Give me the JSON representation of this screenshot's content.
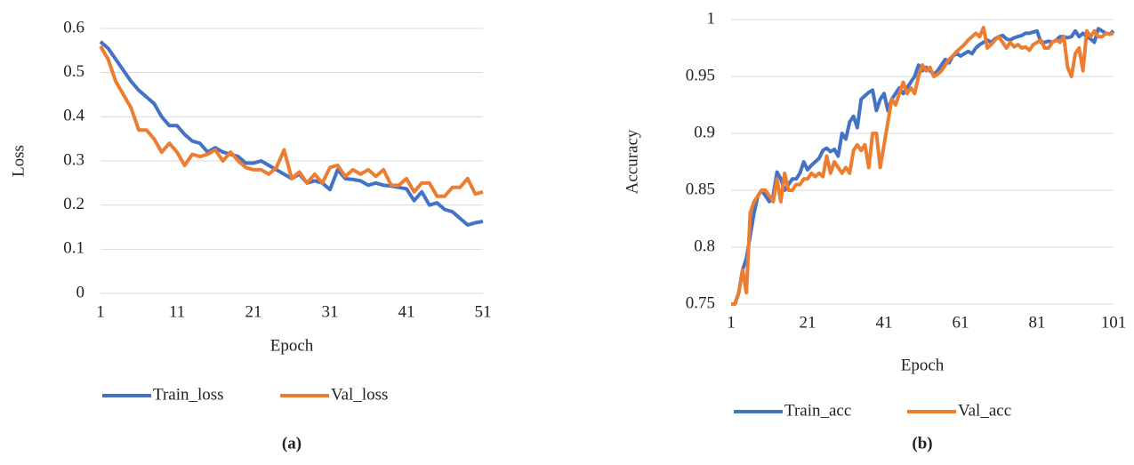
{
  "chart_data": [
    {
      "type": "line",
      "caption": "(a)",
      "xlabel": "Epoch",
      "ylabel": "Loss",
      "xlim": [
        1,
        51
      ],
      "xticks": [
        1,
        11,
        21,
        31,
        41,
        51
      ],
      "ylim": [
        0,
        0.6
      ],
      "yticks": [
        0,
        0.1,
        0.2,
        0.3,
        0.4,
        0.5,
        0.6
      ],
      "grid": true,
      "legend": "bottom",
      "x": [
        1,
        2,
        3,
        4,
        5,
        6,
        7,
        8,
        9,
        10,
        11,
        12,
        13,
        14,
        15,
        16,
        17,
        18,
        19,
        20,
        21,
        22,
        23,
        24,
        25,
        26,
        27,
        28,
        29,
        30,
        31,
        32,
        33,
        34,
        35,
        36,
        37,
        38,
        39,
        40,
        41,
        42,
        43,
        44,
        45,
        46,
        47,
        48,
        49,
        50,
        51
      ],
      "series": [
        {
          "name": "Train_loss",
          "color": "#4472c4",
          "values": [
            0.57,
            0.555,
            0.53,
            0.505,
            0.48,
            0.46,
            0.445,
            0.43,
            0.4,
            0.38,
            0.38,
            0.36,
            0.345,
            0.34,
            0.32,
            0.33,
            0.32,
            0.315,
            0.31,
            0.295,
            0.295,
            0.3,
            0.29,
            0.28,
            0.27,
            0.26,
            0.27,
            0.25,
            0.255,
            0.25,
            0.235,
            0.28,
            0.26,
            0.258,
            0.255,
            0.245,
            0.25,
            0.245,
            0.243,
            0.24,
            0.237,
            0.21,
            0.23,
            0.2,
            0.205,
            0.19,
            0.185,
            0.17,
            0.155,
            0.16,
            0.163
          ]
        },
        {
          "name": "Val_loss",
          "color": "#ed7d31",
          "values": [
            0.56,
            0.53,
            0.48,
            0.45,
            0.42,
            0.37,
            0.37,
            0.35,
            0.32,
            0.34,
            0.32,
            0.29,
            0.315,
            0.31,
            0.315,
            0.325,
            0.3,
            0.32,
            0.3,
            0.285,
            0.28,
            0.28,
            0.27,
            0.285,
            0.325,
            0.26,
            0.275,
            0.25,
            0.27,
            0.25,
            0.285,
            0.29,
            0.265,
            0.28,
            0.27,
            0.28,
            0.265,
            0.28,
            0.245,
            0.245,
            0.26,
            0.23,
            0.25,
            0.25,
            0.22,
            0.22,
            0.24,
            0.24,
            0.26,
            0.225,
            0.23
          ]
        }
      ]
    },
    {
      "type": "line",
      "caption": "(b)",
      "xlabel": "Epoch",
      "ylabel": "Accuracy",
      "xlim": [
        1,
        101
      ],
      "xticks": [
        1,
        21,
        41,
        61,
        81,
        101
      ],
      "ylim": [
        0.75,
        1
      ],
      "yticks": [
        0.75,
        0.8,
        0.85,
        0.9,
        0.95,
        1
      ],
      "grid": true,
      "legend": "bottom",
      "x": [
        1,
        2,
        3,
        4,
        5,
        6,
        7,
        8,
        9,
        10,
        11,
        12,
        13,
        14,
        15,
        16,
        17,
        18,
        19,
        20,
        21,
        22,
        23,
        24,
        25,
        26,
        27,
        28,
        29,
        30,
        31,
        32,
        33,
        34,
        35,
        36,
        37,
        38,
        39,
        40,
        41,
        42,
        43,
        44,
        45,
        46,
        47,
        48,
        49,
        50,
        51,
        52,
        53,
        54,
        55,
        56,
        57,
        58,
        59,
        60,
        61,
        62,
        63,
        64,
        65,
        66,
        67,
        68,
        69,
        70,
        71,
        72,
        73,
        74,
        75,
        76,
        77,
        78,
        79,
        80,
        81,
        82,
        83,
        84,
        85,
        86,
        87,
        88,
        89,
        90,
        91,
        92,
        93,
        94,
        95,
        96,
        97,
        98,
        99,
        100,
        101
      ],
      "series": [
        {
          "name": "Train_acc",
          "color": "#4472c4",
          "values": [
            0.75,
            0.75,
            0.76,
            0.78,
            0.79,
            0.81,
            0.83,
            0.845,
            0.85,
            0.845,
            0.84,
            0.845,
            0.866,
            0.86,
            0.85,
            0.855,
            0.86,
            0.86,
            0.865,
            0.875,
            0.868,
            0.872,
            0.875,
            0.878,
            0.885,
            0.887,
            0.884,
            0.886,
            0.88,
            0.9,
            0.895,
            0.91,
            0.915,
            0.905,
            0.93,
            0.933,
            0.936,
            0.938,
            0.92,
            0.93,
            0.935,
            0.92,
            0.93,
            0.935,
            0.94,
            0.935,
            0.94,
            0.945,
            0.95,
            0.96,
            0.955,
            0.958,
            0.955,
            0.952,
            0.955,
            0.96,
            0.965,
            0.962,
            0.968,
            0.97,
            0.968,
            0.97,
            0.972,
            0.97,
            0.975,
            0.978,
            0.98,
            0.982,
            0.98,
            0.983,
            0.985,
            0.986,
            0.983,
            0.982,
            0.984,
            0.985,
            0.986,
            0.988,
            0.988,
            0.989,
            0.99,
            0.98,
            0.98,
            0.981,
            0.98,
            0.982,
            0.985,
            0.985,
            0.984,
            0.985,
            0.99,
            0.985,
            0.988,
            0.985,
            0.983,
            0.98,
            0.992,
            0.99,
            0.988,
            0.987,
            0.99
          ]
        },
        {
          "name": "Val_acc",
          "color": "#ed7d31",
          "values": [
            0.75,
            0.75,
            0.76,
            0.78,
            0.76,
            0.83,
            0.84,
            0.845,
            0.85,
            0.85,
            0.845,
            0.84,
            0.86,
            0.84,
            0.865,
            0.85,
            0.85,
            0.855,
            0.855,
            0.86,
            0.86,
            0.865,
            0.862,
            0.865,
            0.862,
            0.88,
            0.865,
            0.875,
            0.87,
            0.865,
            0.87,
            0.865,
            0.885,
            0.89,
            0.885,
            0.89,
            0.87,
            0.9,
            0.9,
            0.87,
            0.89,
            0.91,
            0.93,
            0.925,
            0.935,
            0.945,
            0.935,
            0.94,
            0.935,
            0.95,
            0.96,
            0.955,
            0.958,
            0.95,
            0.952,
            0.955,
            0.96,
            0.965,
            0.968,
            0.972,
            0.975,
            0.978,
            0.982,
            0.985,
            0.988,
            0.985,
            0.993,
            0.975,
            0.978,
            0.982,
            0.985,
            0.98,
            0.975,
            0.98,
            0.976,
            0.978,
            0.975,
            0.976,
            0.973,
            0.978,
            0.98,
            0.982,
            0.975,
            0.975,
            0.98,
            0.982,
            0.98,
            0.985,
            0.958,
            0.95,
            0.97,
            0.975,
            0.955,
            0.99,
            0.985,
            0.99,
            0.985,
            0.985,
            0.988,
            0.987,
            0.988
          ]
        }
      ]
    }
  ]
}
